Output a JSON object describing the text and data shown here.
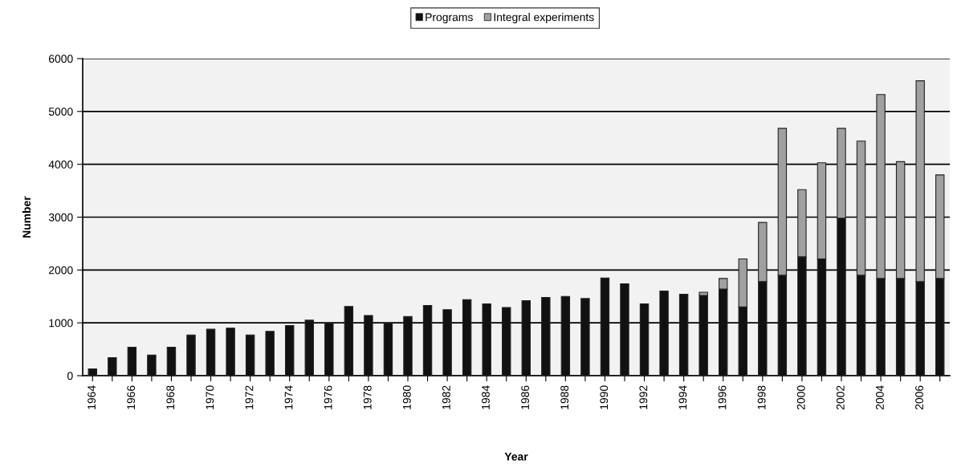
{
  "chart_data": {
    "type": "bar",
    "stacked": true,
    "xlabel": "Year",
    "ylabel": "Number",
    "categories": [
      "1964",
      null,
      "1966",
      null,
      "1968",
      null,
      "1970",
      null,
      "1972",
      null,
      "1974",
      null,
      "1976",
      null,
      "1978",
      null,
      "1980",
      null,
      "1982",
      null,
      "1984",
      null,
      "1986",
      null,
      "1988",
      null,
      "1990",
      null,
      "1992",
      null,
      "1994",
      null,
      "1996",
      null,
      "1998",
      null,
      "2000",
      null,
      "2002",
      null,
      "2004",
      null,
      "2006",
      null
    ],
    "series": [
      {
        "name": "Programs",
        "color": "#111111",
        "values": [
          130,
          340,
          540,
          390,
          540,
          770,
          880,
          900,
          770,
          840,
          950,
          1050,
          1000,
          1310,
          1140,
          1000,
          1120,
          1330,
          1250,
          1440,
          1360,
          1290,
          1420,
          1480,
          1500,
          1460,
          1850,
          1740,
          1360,
          1600,
          1540,
          1520,
          1640,
          1300,
          1780,
          1900,
          2250,
          2210,
          2980,
          1900,
          1840,
          1840,
          1780,
          1840
        ]
      },
      {
        "name": "Integral experiments",
        "color": "#a0a0a0",
        "values": [
          null,
          null,
          null,
          null,
          null,
          null,
          null,
          null,
          null,
          null,
          null,
          null,
          null,
          null,
          null,
          null,
          null,
          null,
          null,
          null,
          null,
          null,
          null,
          null,
          null,
          null,
          null,
          null,
          null,
          null,
          null,
          60,
          200,
          910,
          1120,
          2780,
          1270,
          1820,
          1700,
          2540,
          3480,
          2210,
          3800,
          1960
        ]
      }
    ],
    "ylim": [
      0,
      6000
    ],
    "yticks": [
      0,
      1000,
      2000,
      3000,
      4000,
      5000,
      6000
    ],
    "grid": "y",
    "legend": "top"
  }
}
